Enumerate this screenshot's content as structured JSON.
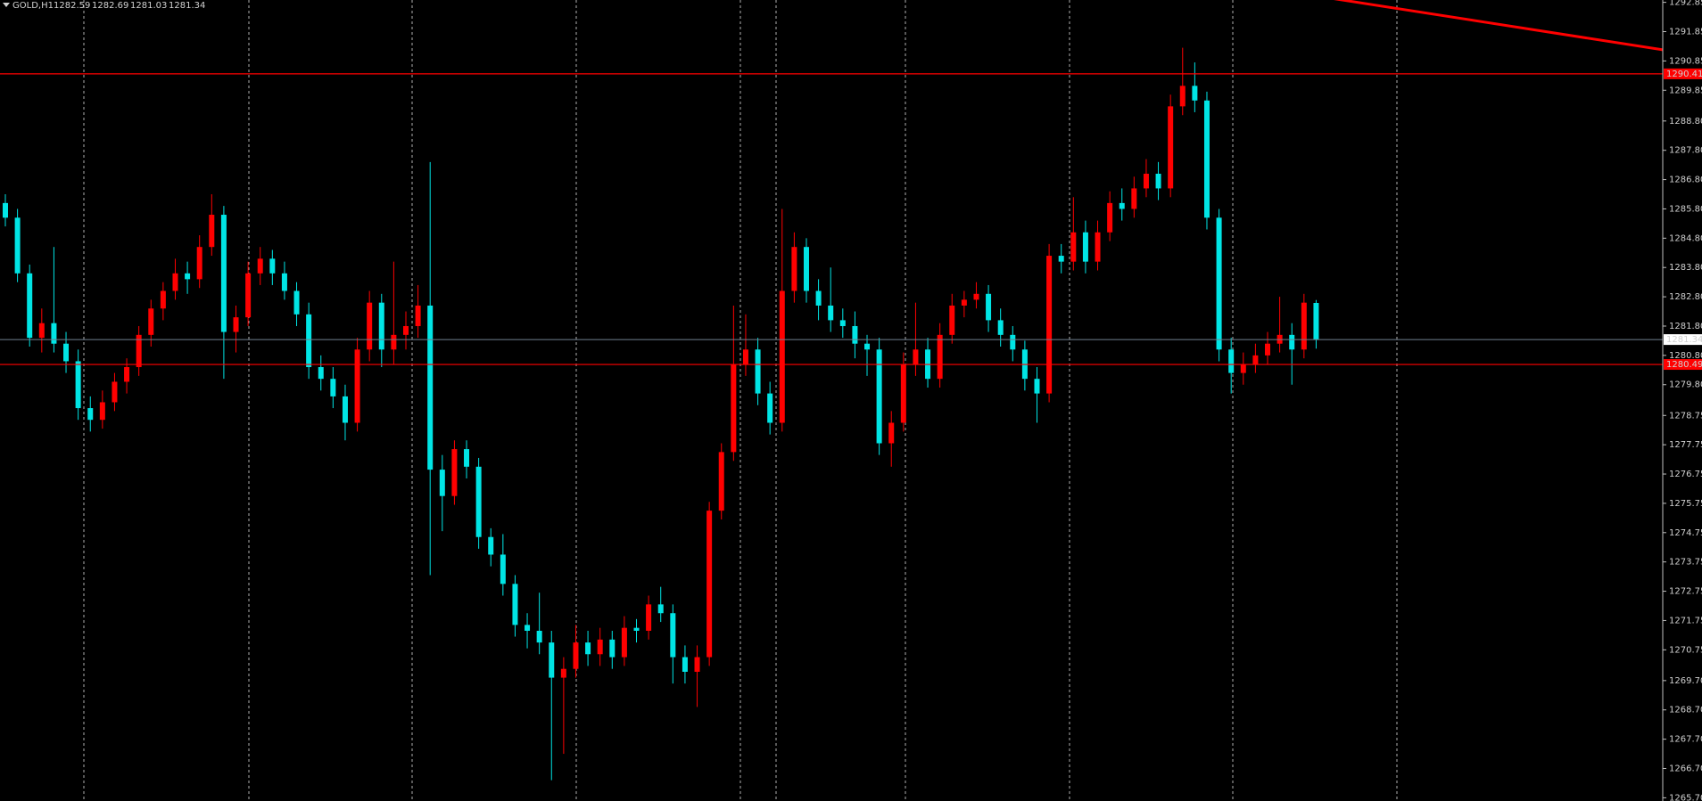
{
  "chart_data": {
    "type": "candlestick",
    "symbol": "GOLD,H1",
    "bull_color": "#ff0000",
    "bear_color": "#00e5e5",
    "ylim": [
      1265.59,
      1292.93
    ],
    "yticks": [
      {
        "value": 1265.7,
        "label": "1265.70"
      },
      {
        "value": 1266.7,
        "label": "1266.70"
      },
      {
        "value": 1267.7,
        "label": "1267.70"
      },
      {
        "value": 1268.7,
        "label": "1268.70"
      },
      {
        "value": 1269.7,
        "label": "1269.70"
      },
      1270.75,
      1271.75,
      1272.75,
      1273.75,
      1274.75,
      1275.75,
      1276.75,
      1277.75,
      1278.75,
      {
        "value": 1279.8,
        "label": "1279.80"
      },
      {
        "value": 1280.8,
        "label": "1280.80"
      },
      {
        "value": 1281.8,
        "label": "1281.80"
      },
      {
        "value": 1282.8,
        "label": "1282.80"
      },
      {
        "value": 1283.8,
        "label": "1283.80"
      },
      {
        "value": 1284.8,
        "label": "1284.80"
      },
      {
        "value": 1285.8,
        "label": "1285.80"
      },
      {
        "value": 1286.8,
        "label": "1286.80"
      },
      {
        "value": 1287.8,
        "label": "1287.80"
      },
      {
        "value": 1288.8,
        "label": "1288.80"
      },
      1289.85,
      1290.85,
      1291.85,
      1292.85
    ],
    "open": [
      1286.0,
      1285.5,
      1283.6,
      1281.4,
      1281.9,
      1281.2,
      1280.6,
      1279.0,
      1278.6,
      1279.2,
      1279.9,
      1280.4,
      1281.5,
      1282.4,
      1283.0,
      1283.6,
      1283.4,
      1284.5,
      1285.6,
      1281.6,
      1282.1,
      1283.6,
      1284.1,
      1283.6,
      1283.0,
      1282.2,
      1280.4,
      1280.0,
      1279.4,
      1278.5,
      1281.0,
      1282.6,
      1281.0,
      1281.5,
      1281.8,
      1282.5,
      1276.9,
      1276.0,
      1277.6,
      1277.0,
      1274.6,
      1274.0,
      1273.0,
      1271.6,
      1271.4,
      1271.0,
      1269.8,
      1270.1,
      1271.0,
      1270.6,
      1271.1,
      1270.5,
      1271.5,
      1271.4,
      1272.3,
      1272.0,
      1270.5,
      1270.0,
      1270.5,
      1275.5,
      1277.5,
      1280.5,
      1281.0,
      1279.5,
      1278.5,
      1283.0,
      1284.5,
      1283.0,
      1282.5,
      1282.0,
      1281.8,
      1281.2,
      1281.0,
      1277.8,
      1278.5,
      1280.5,
      1281.0,
      1280.0,
      1281.5,
      1282.5,
      1282.7,
      1282.9,
      1282.0,
      1281.5,
      1281.0,
      1280.0,
      1279.5,
      1284.2,
      1284.0,
      1285.0,
      1284.0,
      1285.0,
      1286.0,
      1285.8,
      1286.5,
      1287.0,
      1286.5,
      1289.3,
      1290.0,
      1289.5,
      1285.5,
      1281.0,
      1280.2,
      1280.5,
      1280.8,
      1281.2,
      1281.5,
      1281.0,
      1282.59
    ],
    "high": [
      1286.3,
      1285.8,
      1283.9,
      1282.4,
      1284.5,
      1281.6,
      1281.0,
      1279.4,
      1279.6,
      1280.2,
      1280.7,
      1281.8,
      1282.7,
      1283.3,
      1284.1,
      1284.0,
      1284.9,
      1286.3,
      1285.9,
      1282.5,
      1284.0,
      1284.5,
      1284.4,
      1284.0,
      1283.3,
      1282.6,
      1280.8,
      1280.4,
      1279.8,
      1281.4,
      1283.0,
      1282.9,
      1284.0,
      1282.3,
      1283.2,
      1287.4,
      1277.4,
      1277.9,
      1277.9,
      1277.3,
      1274.9,
      1274.7,
      1273.3,
      1272.0,
      1272.7,
      1271.4,
      1270.5,
      1271.6,
      1271.4,
      1271.5,
      1271.4,
      1271.9,
      1271.8,
      1272.6,
      1272.9,
      1272.3,
      1270.9,
      1270.9,
      1275.8,
      1277.8,
      1282.5,
      1282.2,
      1281.4,
      1279.9,
      1285.8,
      1285.0,
      1284.8,
      1283.4,
      1283.8,
      1282.4,
      1282.3,
      1281.5,
      1281.4,
      1278.9,
      1280.9,
      1282.6,
      1281.4,
      1281.9,
      1282.9,
      1283.0,
      1283.3,
      1283.2,
      1282.4,
      1281.8,
      1281.3,
      1280.4,
      1284.6,
      1284.6,
      1286.2,
      1285.4,
      1285.4,
      1286.4,
      1286.5,
      1286.9,
      1287.5,
      1287.4,
      1289.7,
      1291.3,
      1290.8,
      1289.8,
      1285.8,
      1281.4,
      1280.9,
      1281.2,
      1281.6,
      1282.8,
      1281.9,
      1282.9,
      1282.69
    ],
    "low": [
      1285.2,
      1283.3,
      1281.1,
      1280.9,
      1280.9,
      1280.2,
      1278.6,
      1278.2,
      1278.3,
      1278.9,
      1279.5,
      1280.1,
      1281.1,
      1282.0,
      1282.7,
      1282.9,
      1283.1,
      1284.2,
      1280.0,
      1280.9,
      1281.8,
      1283.2,
      1283.2,
      1282.7,
      1281.8,
      1280.0,
      1279.6,
      1279.0,
      1277.9,
      1278.2,
      1280.6,
      1280.4,
      1280.5,
      1281.0,
      1281.4,
      1273.3,
      1274.8,
      1275.7,
      1276.6,
      1274.2,
      1273.6,
      1272.6,
      1271.2,
      1270.8,
      1270.6,
      1266.3,
      1267.2,
      1269.8,
      1270.2,
      1270.2,
      1270.1,
      1270.2,
      1271.0,
      1271.1,
      1271.7,
      1269.6,
      1269.6,
      1268.8,
      1270.2,
      1275.2,
      1277.2,
      1280.1,
      1279.1,
      1278.1,
      1278.2,
      1282.6,
      1282.6,
      1282.0,
      1281.6,
      1281.4,
      1280.7,
      1280.1,
      1277.4,
      1277.0,
      1278.2,
      1280.1,
      1279.7,
      1279.7,
      1281.2,
      1282.1,
      1282.4,
      1281.6,
      1281.1,
      1280.6,
      1279.6,
      1278.5,
      1279.2,
      1283.6,
      1283.7,
      1283.6,
      1283.7,
      1284.7,
      1285.4,
      1285.5,
      1286.2,
      1286.1,
      1286.2,
      1289.0,
      1289.1,
      1285.1,
      1280.6,
      1279.5,
      1279.8,
      1280.2,
      1280.5,
      1280.9,
      1279.8,
      1280.7,
      1281.03
    ],
    "close": [
      1285.5,
      1283.6,
      1281.4,
      1281.9,
      1281.2,
      1280.6,
      1279.0,
      1278.6,
      1279.2,
      1279.9,
      1280.4,
      1281.5,
      1282.4,
      1283.0,
      1283.6,
      1283.4,
      1284.5,
      1285.6,
      1281.6,
      1282.1,
      1283.6,
      1284.1,
      1283.6,
      1283.0,
      1282.2,
      1280.4,
      1280.0,
      1279.4,
      1278.5,
      1281.0,
      1282.6,
      1281.0,
      1281.5,
      1281.8,
      1282.5,
      1276.9,
      1276.0,
      1277.6,
      1277.0,
      1274.6,
      1274.0,
      1273.0,
      1271.6,
      1271.4,
      1271.0,
      1269.8,
      1270.1,
      1271.0,
      1270.6,
      1271.1,
      1270.5,
      1271.5,
      1271.4,
      1272.3,
      1272.0,
      1270.5,
      1270.0,
      1270.5,
      1275.5,
      1277.5,
      1280.5,
      1281.0,
      1279.5,
      1278.5,
      1283.0,
      1284.5,
      1283.0,
      1282.5,
      1282.0,
      1281.8,
      1281.2,
      1281.0,
      1277.8,
      1278.5,
      1280.5,
      1281.0,
      1280.0,
      1281.5,
      1282.5,
      1282.7,
      1282.9,
      1282.0,
      1281.5,
      1281.0,
      1280.0,
      1279.5,
      1284.2,
      1284.0,
      1285.0,
      1284.0,
      1285.0,
      1286.0,
      1285.8,
      1286.5,
      1287.0,
      1286.5,
      1289.3,
      1290.0,
      1289.5,
      1285.5,
      1281.0,
      1280.2,
      1280.5,
      1280.8,
      1281.2,
      1281.5,
      1281.0,
      1282.6,
      1281.34
    ],
    "levels": [
      {
        "value": 1290.41,
        "color": "#ff0000"
      },
      {
        "value": 1280.49,
        "color": "#ff0000"
      }
    ],
    "bid_color": "#708090",
    "trendline": {
      "values": [
        1293.0,
        1291.23
      ],
      "color": "#ff0000"
    }
  }
}
